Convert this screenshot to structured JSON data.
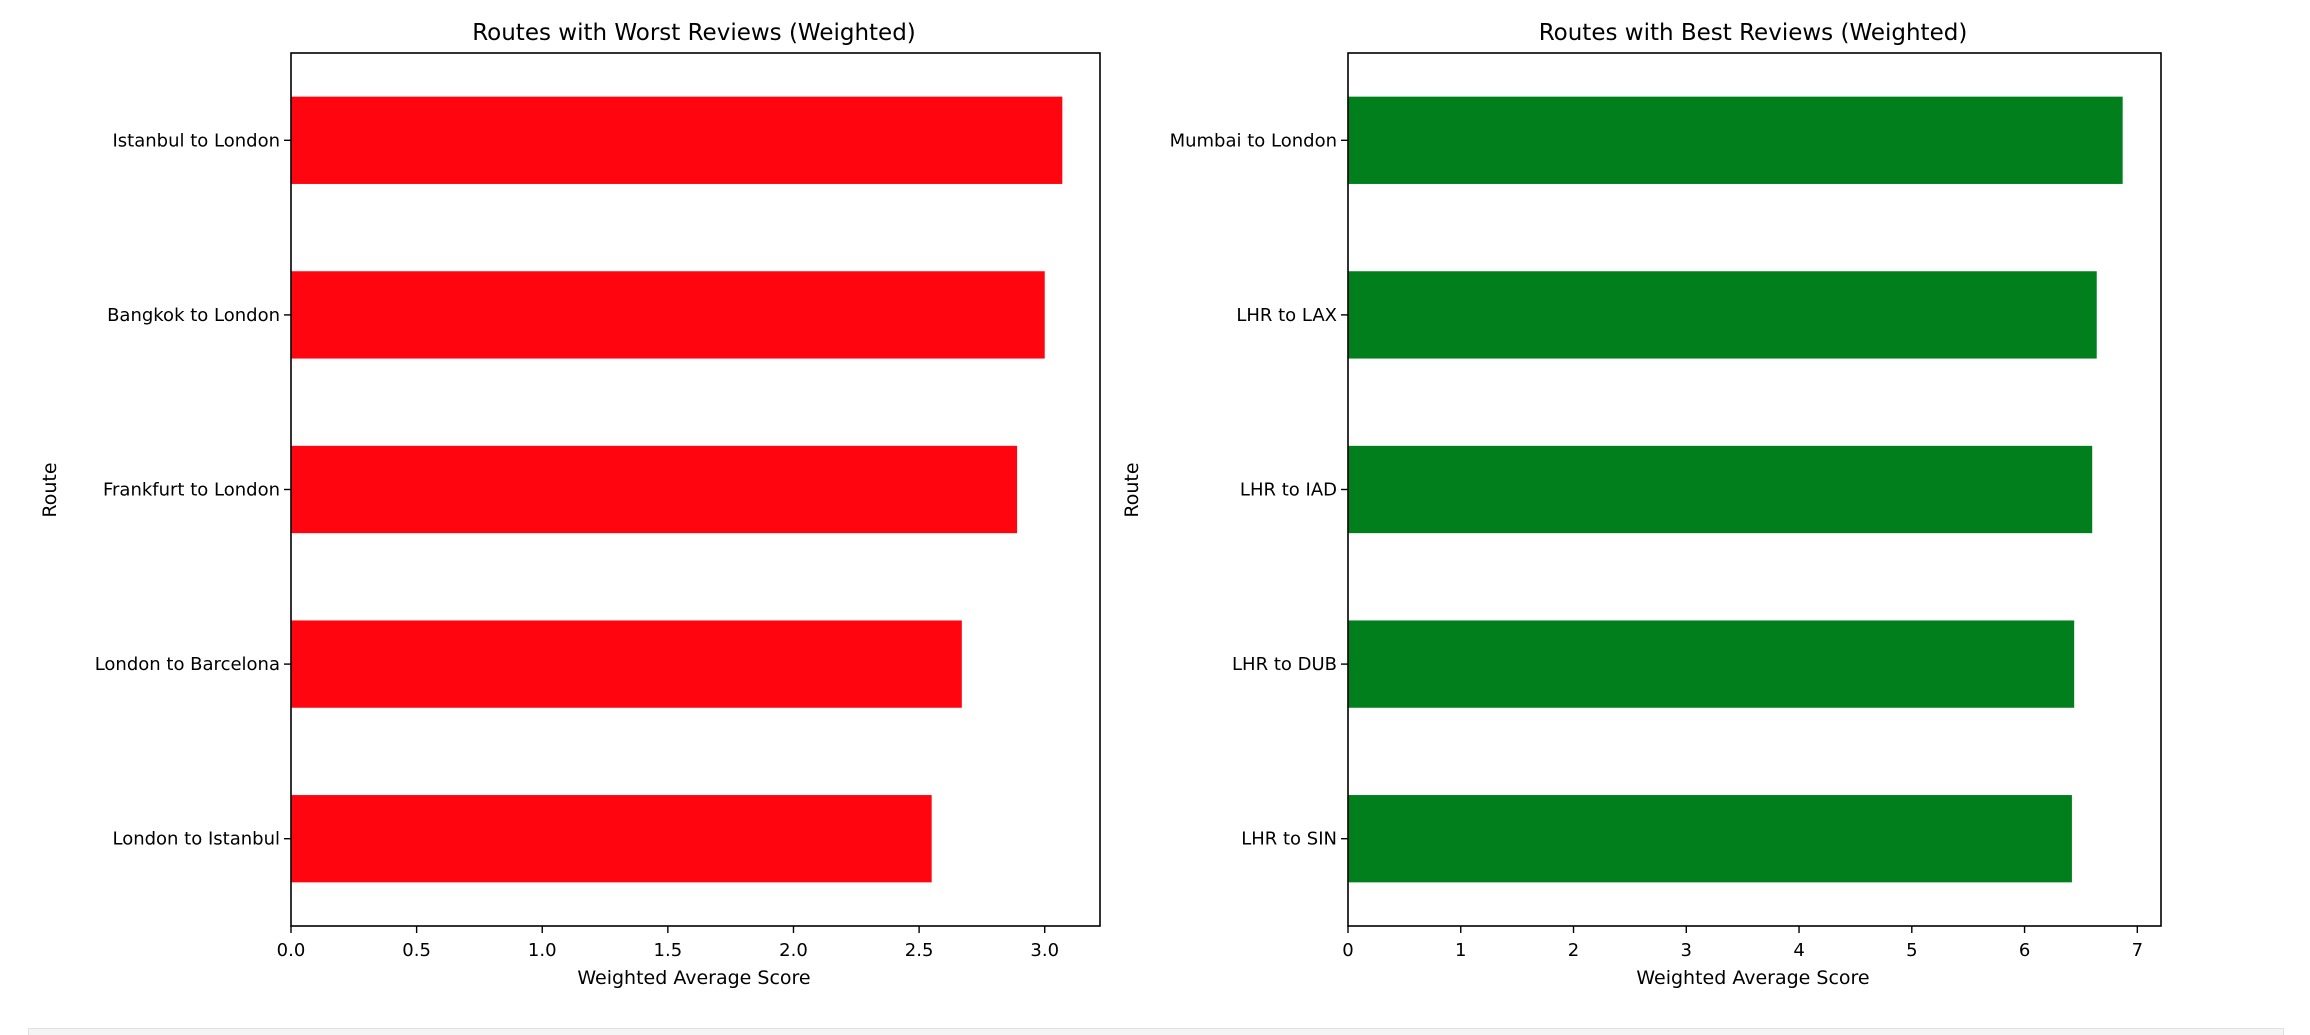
{
  "chart_data": [
    {
      "type": "bar",
      "orientation": "horizontal",
      "title": "Routes with Worst Reviews (Weighted)",
      "xlabel": "Weighted Average Score",
      "ylabel": "Route",
      "categories": [
        "Istanbul to London",
        "Bangkok to London",
        "Frankfurt to London",
        "London to Barcelona",
        "London to Istanbul"
      ],
      "values": [
        3.07,
        3.0,
        2.89,
        2.67,
        2.55
      ],
      "xlim": [
        0,
        3.22
      ],
      "xticks": [
        0.0,
        0.5,
        1.0,
        1.5,
        2.0,
        2.5,
        3.0
      ],
      "xtick_labels": [
        "0.0",
        "0.5",
        "1.0",
        "1.5",
        "2.0",
        "2.5",
        "3.0"
      ],
      "bar_color": "#ff0510",
      "grid": false,
      "legend": "none"
    },
    {
      "type": "bar",
      "orientation": "horizontal",
      "title": "Routes with Best Reviews (Weighted)",
      "xlabel": "Weighted Average Score",
      "ylabel": "Route",
      "categories": [
        "Mumbai to London",
        "LHR to LAX",
        "LHR to IAD",
        "LHR to DUB",
        "LHR to SIN"
      ],
      "values": [
        6.87,
        6.64,
        6.6,
        6.44,
        6.42
      ],
      "xlim": [
        0,
        7.21
      ],
      "xticks": [
        0,
        1,
        2,
        3,
        4,
        5,
        6,
        7
      ],
      "xtick_labels": [
        "0",
        "1",
        "2",
        "3",
        "4",
        "5",
        "6",
        "7"
      ],
      "bar_color": "#007f1c",
      "grid": false,
      "legend": "none"
    }
  ]
}
